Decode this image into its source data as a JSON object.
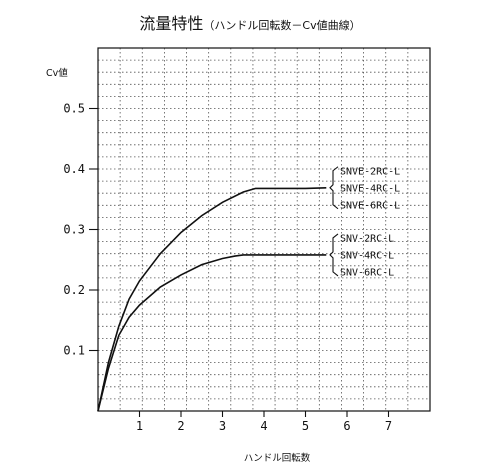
{
  "chart_data": {
    "type": "line",
    "title": "流量特性",
    "subtitle": "（ハンドル回転数－Cv値曲線）",
    "xlabel": "ハンドル回転数",
    "ylabel": "Cv値",
    "xlim": [
      0,
      8
    ],
    "ylim": [
      0,
      0.6
    ],
    "x_ticks": [
      "1",
      "2",
      "3",
      "4",
      "5",
      "6",
      "7"
    ],
    "y_ticks": [
      "0.1",
      "0.2",
      "0.3",
      "0.4",
      "0.5"
    ],
    "grid": true,
    "legend_position": "right",
    "series": [
      {
        "labels": [
          "SNVE-2RC-L",
          "SNVE-4RC-L",
          "SNVE-6RC-L"
        ],
        "x": [
          0,
          0.25,
          0.5,
          0.75,
          1.0,
          1.5,
          2.0,
          2.5,
          3.0,
          3.5,
          3.8,
          4.0,
          5.0,
          5.5
        ],
        "y": [
          0,
          0.08,
          0.14,
          0.185,
          0.215,
          0.26,
          0.295,
          0.323,
          0.345,
          0.362,
          0.368,
          0.368,
          0.368,
          0.369
        ]
      },
      {
        "labels": [
          "SNV-2RC-L",
          "SNV-4RC-L",
          "SNV-6RC-L"
        ],
        "x": [
          0,
          0.25,
          0.5,
          0.75,
          1.0,
          1.5,
          2.0,
          2.5,
          3.0,
          3.3,
          3.5,
          4.0,
          5.0,
          5.5
        ],
        "y": [
          0,
          0.07,
          0.125,
          0.155,
          0.175,
          0.205,
          0.225,
          0.242,
          0.252,
          0.256,
          0.258,
          0.258,
          0.258,
          0.258
        ]
      }
    ]
  }
}
